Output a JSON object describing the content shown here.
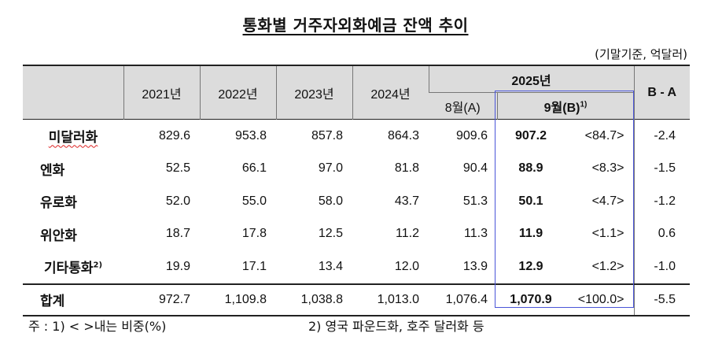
{
  "title": "통화별 거주자외화예금 잔액 추이",
  "unit": "(기말기준, 억달러)",
  "header": {
    "years": [
      "2021년",
      "2022년",
      "2023년",
      "2024년"
    ],
    "year_2025": "2025년",
    "aug": "8월(A)",
    "sep": "9월(B)",
    "sep_sup": "1)",
    "diff": "B - A"
  },
  "rows": [
    {
      "label": "미달러화",
      "sup": "",
      "values": [
        "829.6",
        "953.8",
        "857.8",
        "864.3",
        "909.6"
      ],
      "sep": "907.2",
      "share": "<84.7>",
      "diff": "-2.4"
    },
    {
      "label": "엔화",
      "sup": "",
      "values": [
        "52.5",
        "66.1",
        "97.0",
        "81.8",
        "90.4"
      ],
      "sep": "88.9",
      "share": "<8.3>",
      "diff": "-1.5"
    },
    {
      "label": "유로화",
      "sup": "",
      "values": [
        "52.0",
        "55.0",
        "58.0",
        "43.7",
        "51.3"
      ],
      "sep": "50.1",
      "share": "<4.7>",
      "diff": "-1.2"
    },
    {
      "label": "위안화",
      "sup": "",
      "values": [
        "18.7",
        "17.8",
        "12.5",
        "11.2",
        "11.3"
      ],
      "sep": "11.9",
      "share": "<1.1>",
      "diff": "0.6"
    },
    {
      "label": "기타통화",
      "sup": "2)",
      "values": [
        "19.9",
        "17.1",
        "13.4",
        "12.0",
        "13.9"
      ],
      "sep": "12.9",
      "share": "<1.2>",
      "diff": "-1.0"
    }
  ],
  "total": {
    "label": "합계",
    "values": [
      "972.7",
      "1,109.8",
      "1,038.8",
      "1,013.0",
      "1,076.4"
    ],
    "sep": "1,070.9",
    "share": "<100.0>",
    "diff": "-5.5"
  },
  "notes": {
    "note1": "주 : 1) <   >내는 비중(%)",
    "note2": "2) 영국 파운드화, 호주 달러화 등"
  }
}
